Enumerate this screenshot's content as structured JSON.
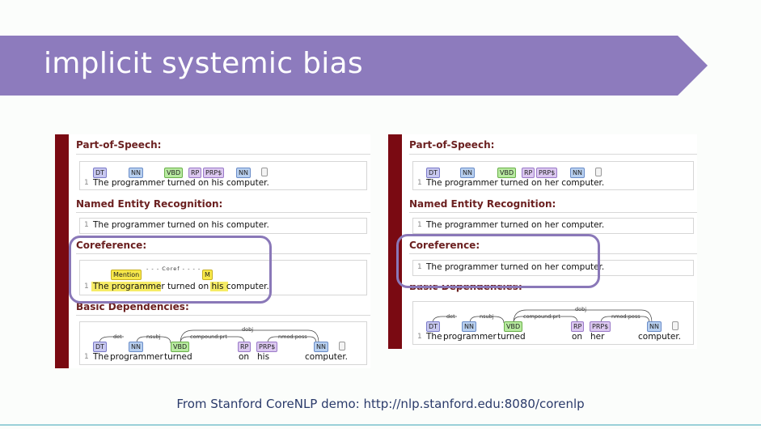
{
  "slide": {
    "title": "implicit systemic bias",
    "caption": "From Stanford CoreNLP demo: http://nlp.stanford.edu:8080/corenlp",
    "banner_color": "#8d7bbd",
    "highlight_circle_color": "#8a78b8"
  },
  "left_panel": {
    "sections": {
      "pos": "Part-of-Speech:",
      "ner": "Named Entity Recognition:",
      "coref": "Coreference:",
      "deps": "Basic Dependencies:"
    },
    "row_number": "1",
    "pos_tags": [
      "DT",
      "NN",
      "VBD",
      "RP",
      "PRP$",
      "NN"
    ],
    "pos_sentence": "The programmer turned on  his   computer.",
    "ner_sentence": "The programmer turned on his computer.",
    "coref_sentence": "The programmer turned on his computer.",
    "coref_mention": "Mention",
    "coref_label": "Coref",
    "coref_m": "M",
    "dep_tags": [
      "DT",
      "NN",
      "VBD",
      "RP",
      "PRP$",
      "NN"
    ],
    "dep_labels": [
      "det",
      "nsubj",
      "compound:prt",
      "dobj",
      "nmod:poss"
    ],
    "dep_words": [
      "The",
      "programmer",
      "turned",
      "on",
      "his",
      "computer."
    ]
  },
  "right_panel": {
    "sections": {
      "pos": "Part-of-Speech:",
      "ner": "Named Entity Recognition:",
      "coref": "Coreference:",
      "deps": "Basic Dependencies:"
    },
    "row_number": "1",
    "pos_tags": [
      "DT",
      "NN",
      "VBD",
      "RP",
      "PRP$",
      "NN"
    ],
    "pos_sentence": "The programmer turned on  her   computer.",
    "ner_sentence": "The programmer turned on her computer.",
    "coref_sentence": "The programmer turned on her computer.",
    "dep_tags": [
      "DT",
      "NN",
      "VBD",
      "RP",
      "PRP$",
      "NN"
    ],
    "dep_labels": [
      "det",
      "nsubj",
      "compound:prt",
      "dobj",
      "nmod:poss"
    ],
    "dep_words": [
      "The",
      "programmer",
      "turned",
      "on",
      "her",
      "computer."
    ]
  }
}
